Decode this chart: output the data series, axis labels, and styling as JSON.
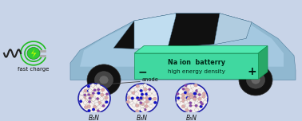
{
  "bg_color": "#c8d4e8",
  "car_body_color": "#90b8d0",
  "car_highlight_color": "#b8d8f0",
  "wheel_color": "#1a1a1a",
  "battery_top_color": "#50e8b0",
  "battery_front_color": "#40d8a0",
  "battery_side_color": "#28a868",
  "battery_text1": "Na ion  batterry",
  "battery_text2": "high energy density",
  "battery_minus": "−",
  "battery_plus": "+",
  "anode_label": "anode",
  "circle_labels": [
    "B₂N",
    "B₃N",
    "B₅N"
  ],
  "plug_green": "#22bb22",
  "plug_bolt_color": "#ccff00",
  "fast_charge_text": "fast charge",
  "circle_border_color": "#2222aa",
  "atom_blue": "#1010cc",
  "atom_purple": "#8844aa",
  "atom_pink": "#ddaaaa",
  "atom_white": "#f5f0ee",
  "bond_color": "#c8a090"
}
